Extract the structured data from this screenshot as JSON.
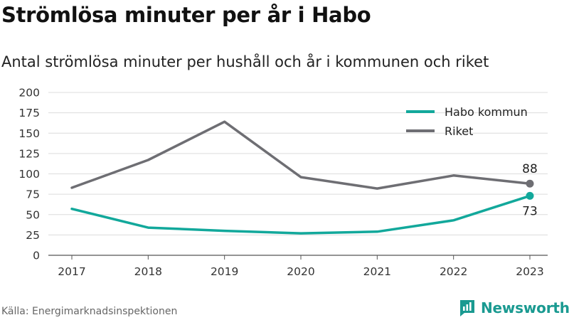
{
  "header": {
    "title": "Strömlösa minuter per år i Habo",
    "subtitle": "Antal strömlösa minuter per hushåll och år i kommunen och riket"
  },
  "footer": {
    "source": "Källa: Energimarknadsinspektionen",
    "brand": "Newsworthy"
  },
  "chart_data": {
    "type": "line",
    "title": "Strömlösa minuter per år i Habo",
    "subtitle": "Antal strömlösa minuter per hushåll och år i kommunen och riket",
    "x": [
      "2017",
      "2018",
      "2019",
      "2020",
      "2021",
      "2022",
      "2023"
    ],
    "ylim": [
      0,
      200
    ],
    "yticks": [
      0,
      25,
      50,
      75,
      100,
      125,
      150,
      175,
      200
    ],
    "grid": true,
    "legend_position": "top-right",
    "series": [
      {
        "name": "Habo kommun",
        "color": "#12a89b",
        "values": [
          57,
          34,
          30,
          27,
          29,
          43,
          73
        ],
        "end_label": "73"
      },
      {
        "name": "Riket",
        "color": "#6e6e73",
        "values": [
          83,
          117,
          164,
          96,
          82,
          98,
          88
        ],
        "end_label": "88"
      }
    ]
  }
}
